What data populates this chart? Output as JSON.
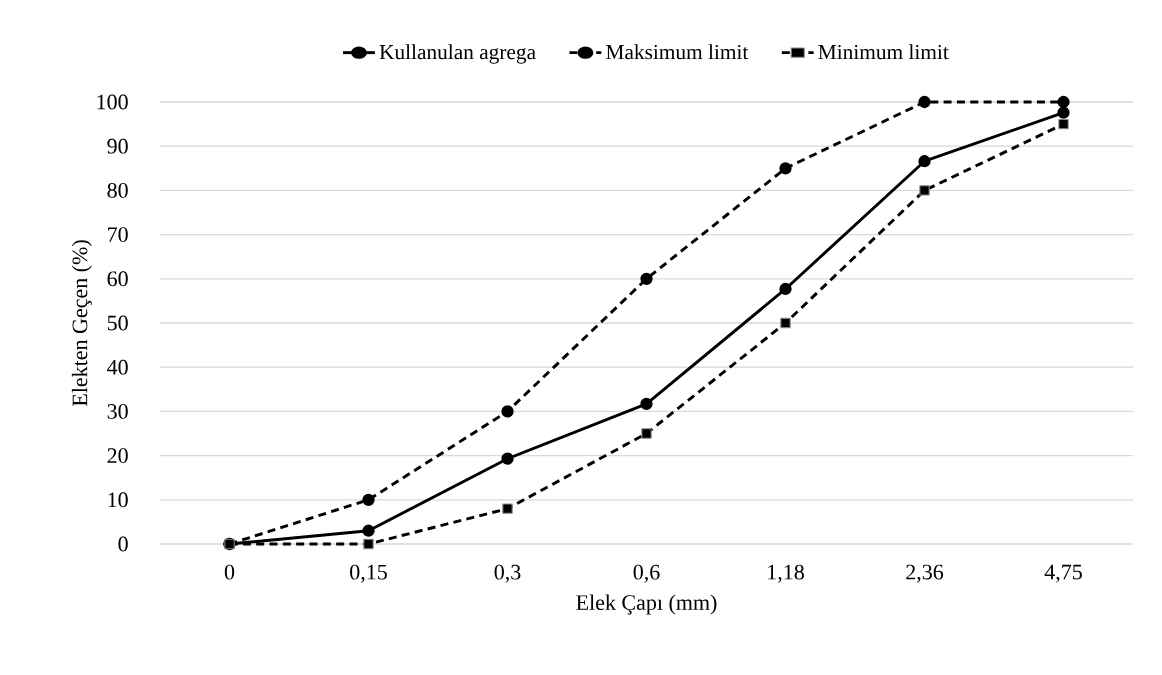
{
  "chart_data": {
    "type": "line",
    "xlabel": "Elek Çapı (mm)",
    "ylabel": "Elekten Geçen (%)",
    "categories": [
      "0",
      "0,15",
      "0,3",
      "0,6",
      "1,18",
      "2,36",
      "4,75"
    ],
    "ylim": [
      0,
      100
    ],
    "yticks": [
      0,
      10,
      20,
      30,
      40,
      50,
      60,
      70,
      80,
      90,
      100
    ],
    "grid": "y",
    "legend": "top",
    "series": [
      {
        "name": "Kullanulan agrega",
        "color": "#000000",
        "marker": "circle",
        "line_style": "solid",
        "values": [
          0,
          3.0,
          19.3,
          31.7,
          57.7,
          86.6,
          97.6
        ]
      },
      {
        "name": "Maksimum limit",
        "color": "#000000",
        "marker": "circle",
        "line_style": "dashed",
        "values": [
          0,
          10,
          30,
          60,
          85,
          100,
          100
        ]
      },
      {
        "name": "Minimum limit",
        "color": "#000000",
        "marker": "square",
        "line_style": "dashed",
        "values": [
          0,
          0,
          8,
          25,
          50,
          80,
          95
        ]
      }
    ]
  }
}
